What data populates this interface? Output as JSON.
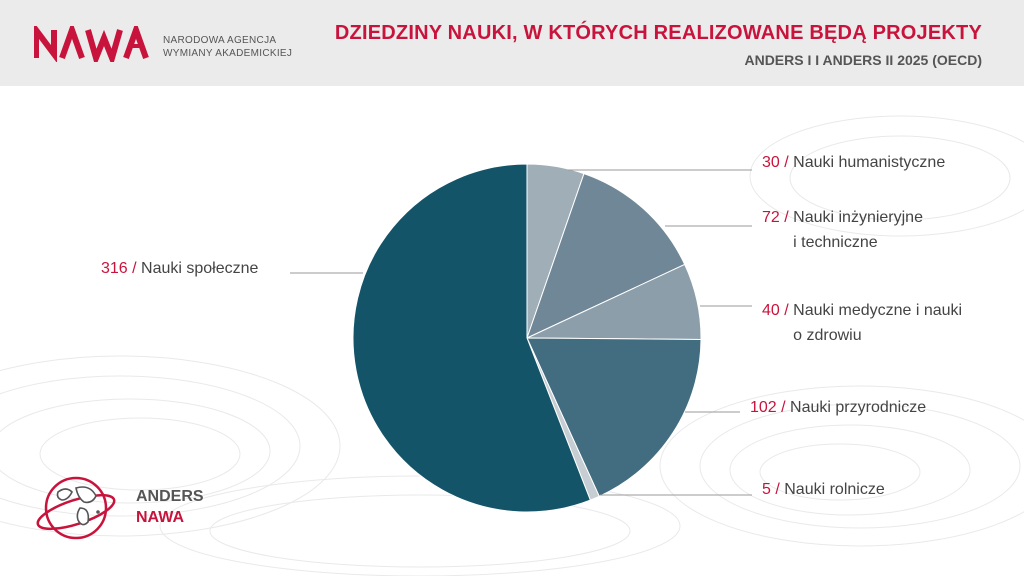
{
  "brand": {
    "logo_text": "NAWA",
    "org_line1": "NARODOWA AGENCJA",
    "org_line2": "WYMIANY AKADEMICKIEJ",
    "anders_line1": "ANDERS",
    "anders_line2": "NAWA",
    "accent": "#c8143c"
  },
  "chart_data": {
    "type": "pie",
    "title": "DZIEDZINY NAUKI, W KTÓRYCH REALIZOWANE BĘDĄ PROJEKTY",
    "subtitle": "ANDERS I I ANDERS II 2025 (OECD)",
    "start_angle_deg": 0,
    "direction": "clockwise",
    "slices": [
      {
        "label": "Nauki humanistyczne",
        "value": 30,
        "value_text": "30",
        "color": "#a0aeb8"
      },
      {
        "label": "Nauki inżynieryjne\ni techniczne",
        "value": 72,
        "value_text": "72",
        "color": "#6f8796"
      },
      {
        "label": "Nauki medyczne i nauki\no zdrowiu",
        "value": 40,
        "value_text": "40",
        "color": "#8c9eaa"
      },
      {
        "label": "Nauki przyrodnicze",
        "value": 102,
        "value_text": "102",
        "color": "#426c7f"
      },
      {
        "label": "Nauki rolnicze",
        "value": 5,
        "value_text": "5",
        "color": "#c7ced3"
      },
      {
        "label": "Nauki społeczne",
        "value": 316,
        "value_text": "316",
        "color": "#135468"
      }
    ]
  }
}
